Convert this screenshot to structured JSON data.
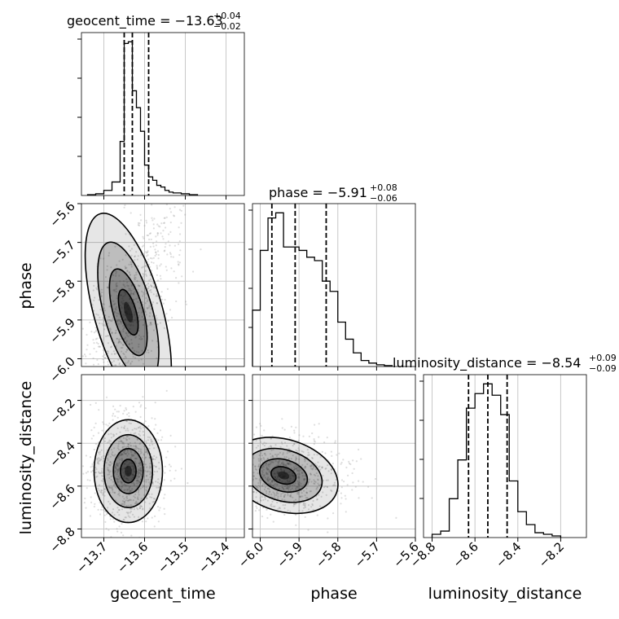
{
  "chart_data": {
    "type": "corner",
    "parameters": [
      "geocent_time",
      "phase",
      "luminosity_distance"
    ],
    "titles": [
      {
        "param": "geocent_time",
        "text": "geocent_time = −13.63",
        "plus": "+0.04",
        "minus": "−0.02"
      },
      {
        "param": "phase",
        "text": "phase = −5.91",
        "plus": "+0.08",
        "minus": "−0.06"
      },
      {
        "param": "luminosity_distance",
        "text": "luminosity_distance = −8.54",
        "plus": "+0.09",
        "minus": "−0.09"
      }
    ],
    "ranges": {
      "geocent_time": [
        -13.755,
        -13.355
      ],
      "phase": [
        -6.02,
        -5.6
      ],
      "luminosity_distance": [
        -8.84,
        -8.08
      ]
    },
    "ticks": {
      "geocent_time": {
        "values": [
          -13.7,
          -13.6,
          -13.5,
          -13.4
        ],
        "labels": [
          "−13.7",
          "−13.6",
          "−13.5",
          "−13.4"
        ]
      },
      "phase": {
        "values": [
          -6.0,
          -5.9,
          -5.8,
          -5.7,
          -5.6
        ],
        "labels": [
          "−6.0",
          "−5.9",
          "−5.8",
          "−5.7",
          "−5.6"
        ]
      },
      "luminosity_distance": {
        "values": [
          -8.8,
          -8.6,
          -8.4,
          -8.2
        ],
        "labels": [
          "−8.8",
          "−8.6",
          "−8.4",
          "−8.2"
        ]
      }
    },
    "histograms": {
      "geocent_time": {
        "edges": [
          -13.74,
          -13.72,
          -13.7,
          -13.68,
          -13.66,
          -13.65,
          -13.64,
          -13.63,
          -13.62,
          -13.61,
          -13.6,
          -13.59,
          -13.58,
          -13.57,
          -13.56,
          -13.55,
          -13.54,
          -13.53,
          -13.51,
          -13.49,
          -13.47
        ],
        "counts": [
          0.005,
          0.01,
          0.03,
          0.08,
          0.32,
          0.9,
          0.91,
          0.62,
          0.52,
          0.38,
          0.18,
          0.11,
          0.09,
          0.06,
          0.05,
          0.03,
          0.02,
          0.015,
          0.01,
          0.005
        ],
        "quantiles": [
          -13.65,
          -13.63,
          -13.59
        ]
      },
      "phase": {
        "edges": [
          -6.02,
          -6.0,
          -5.98,
          -5.96,
          -5.94,
          -5.92,
          -5.9,
          -5.88,
          -5.86,
          -5.84,
          -5.82,
          -5.8,
          -5.78,
          -5.76,
          -5.74,
          -5.72,
          -5.7,
          -5.68,
          -5.66
        ],
        "counts": [
          0.33,
          0.68,
          0.87,
          0.9,
          0.7,
          0.7,
          0.68,
          0.64,
          0.62,
          0.5,
          0.44,
          0.26,
          0.16,
          0.08,
          0.035,
          0.02,
          0.01,
          0.005
        ],
        "quantiles": [
          -5.97,
          -5.91,
          -5.83
        ]
      },
      "luminosity_distance": {
        "edges": [
          -8.8,
          -8.76,
          -8.72,
          -8.68,
          -8.64,
          -8.6,
          -8.56,
          -8.52,
          -8.48,
          -8.44,
          -8.4,
          -8.36,
          -8.32,
          -8.28,
          -8.24,
          -8.2
        ],
        "counts": [
          0.02,
          0.04,
          0.24,
          0.48,
          0.8,
          0.89,
          0.95,
          0.88,
          0.76,
          0.35,
          0.16,
          0.08,
          0.03,
          0.02,
          0.01
        ],
        "quantiles": [
          -8.63,
          -8.54,
          -8.45
        ]
      }
    },
    "densities_2d": [
      {
        "x": "geocent_time",
        "y": "phase",
        "center": [
          -13.64,
          -5.88
        ],
        "tilt": -1.0,
        "spread": [
          0.035,
          0.11
        ]
      },
      {
        "x": "geocent_time",
        "y": "luminosity_distance",
        "center": [
          -13.64,
          -8.53
        ],
        "tilt": 0.0,
        "spread": [
          0.035,
          0.1
        ]
      },
      {
        "x": "phase",
        "y": "luminosity_distance",
        "center": [
          -5.94,
          -8.55
        ],
        "tilt": 0.3,
        "spread": [
          0.06,
          0.07
        ]
      }
    ],
    "grid": true,
    "quantile_lines": "dashed"
  }
}
